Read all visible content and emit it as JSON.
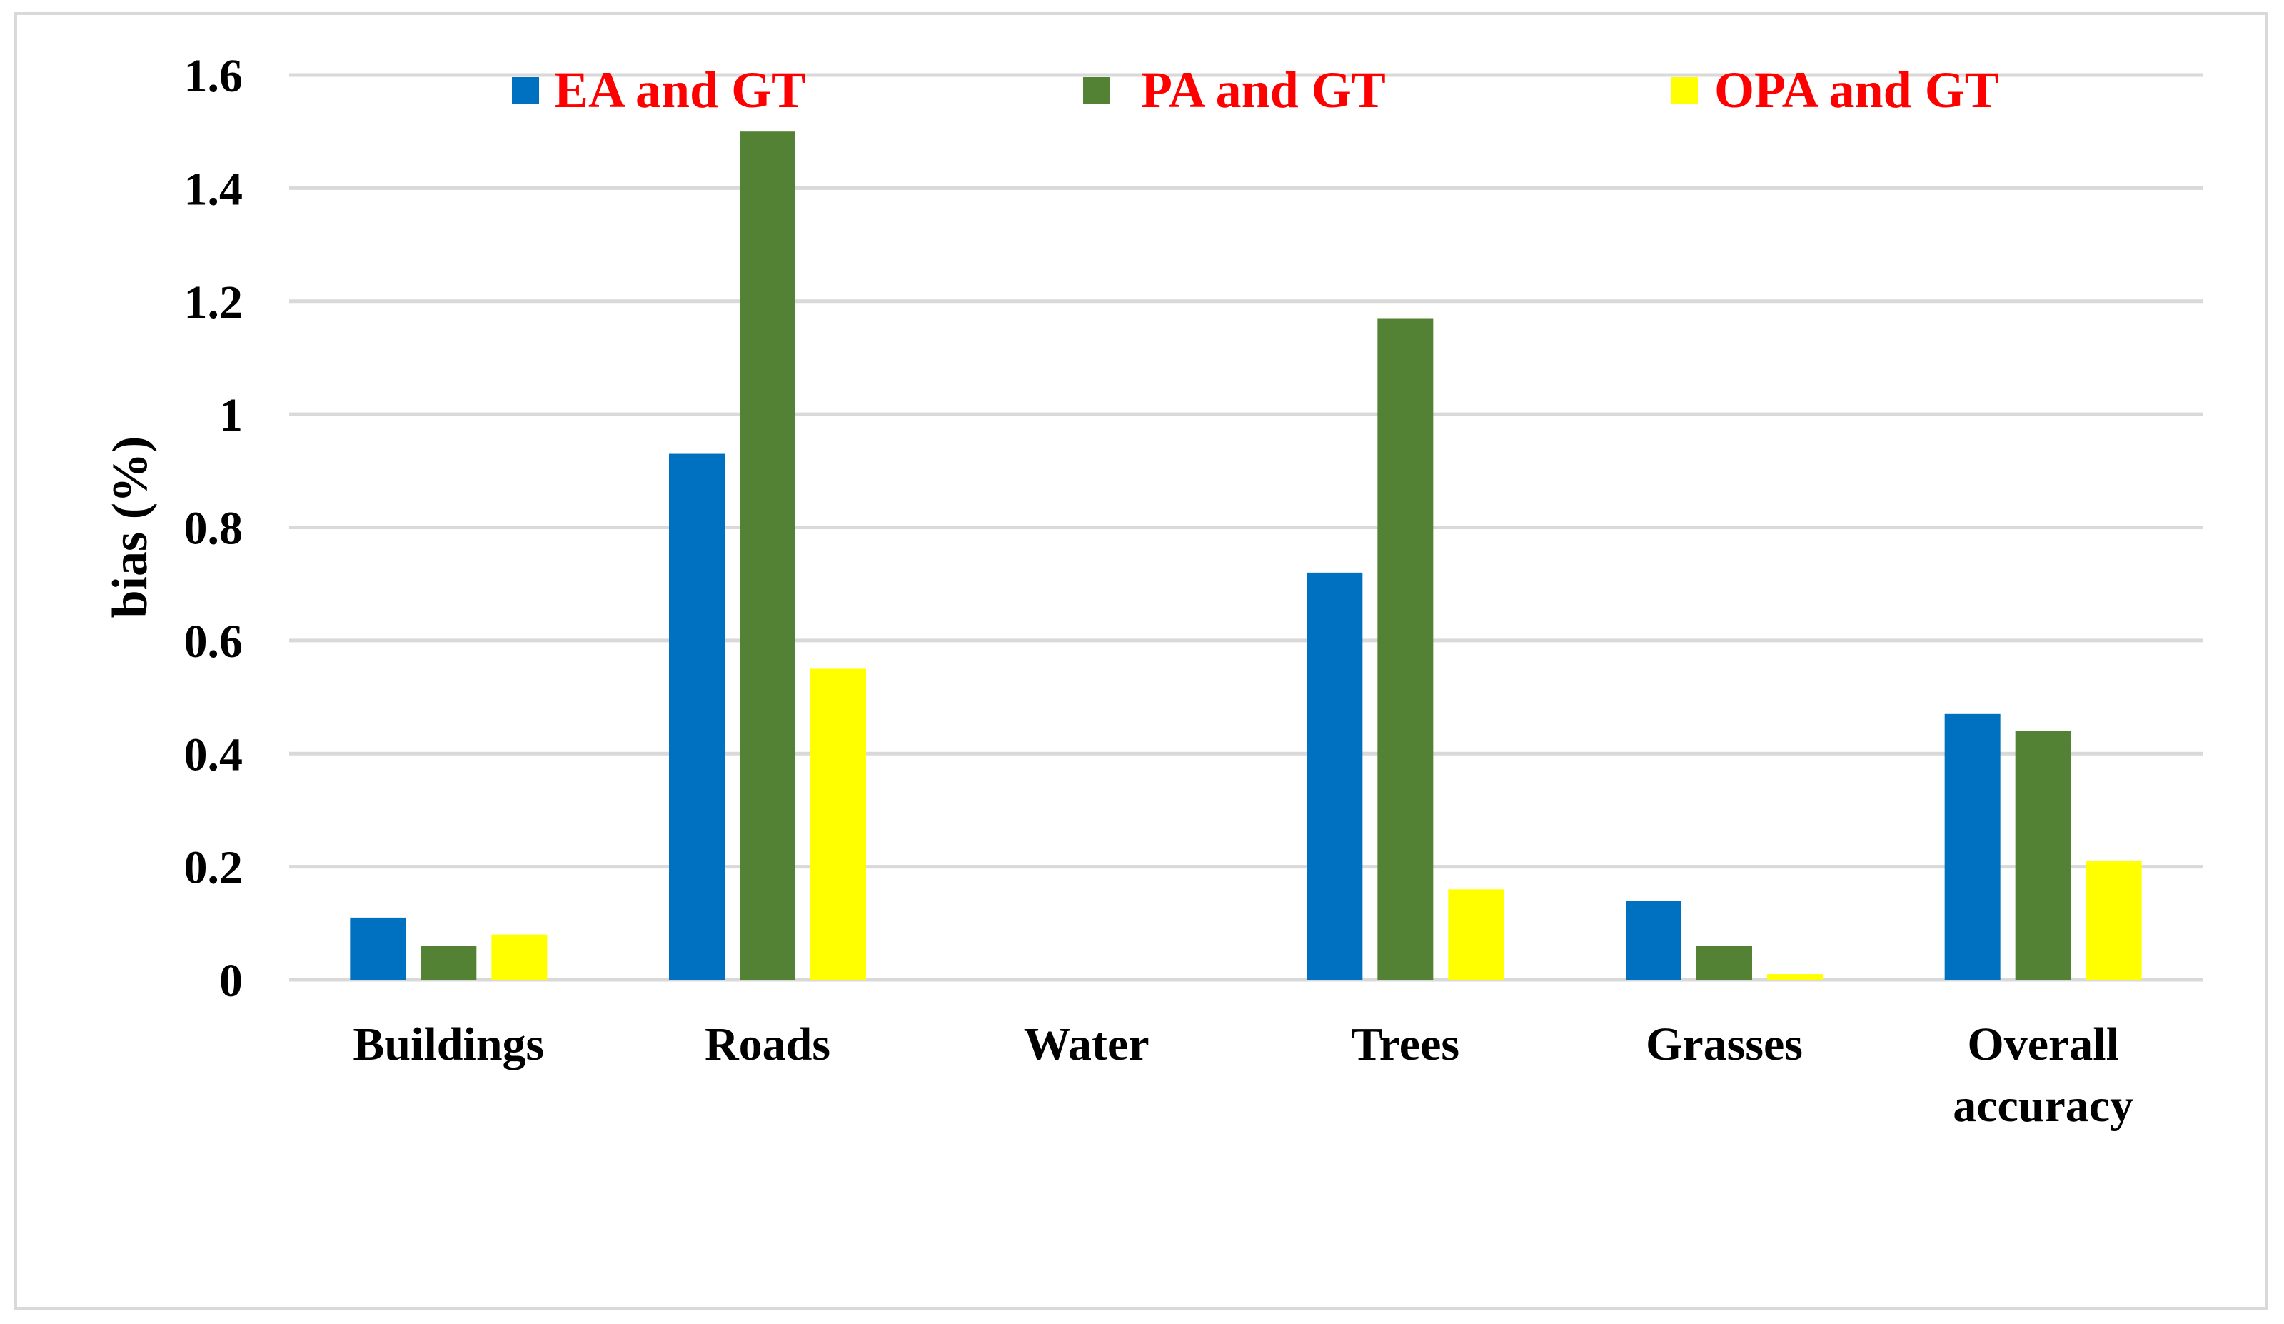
{
  "chart_data": {
    "type": "bar",
    "title": "",
    "xlabel": "",
    "ylabel": "bias (%)",
    "ylim": [
      0,
      1.6
    ],
    "yticks": [
      "0",
      "0.2",
      "0.4",
      "0.6",
      "0.8",
      "1",
      "1.2",
      "1.4",
      "1.6"
    ],
    "grid": true,
    "legend_position": "top",
    "legend_text_color": "#ff0000",
    "categories": [
      [
        "Buildings"
      ],
      [
        "Roads"
      ],
      [
        "Water"
      ],
      [
        "Trees"
      ],
      [
        "Grasses"
      ],
      [
        "Overall",
        "accuracy"
      ]
    ],
    "series": [
      {
        "name": "EA and GT",
        "color": "#0070c0",
        "values": [
          0.11,
          0.93,
          0,
          0.72,
          0.14,
          0.47
        ]
      },
      {
        "name": "PA and GT",
        "color": "#548235",
        "values": [
          0.06,
          1.5,
          0,
          1.17,
          0.06,
          0.44
        ]
      },
      {
        "name": "OPA and GT",
        "color": "#ffff00",
        "values": [
          0.08,
          0.55,
          0,
          0.16,
          0.01,
          0.21
        ]
      }
    ]
  }
}
